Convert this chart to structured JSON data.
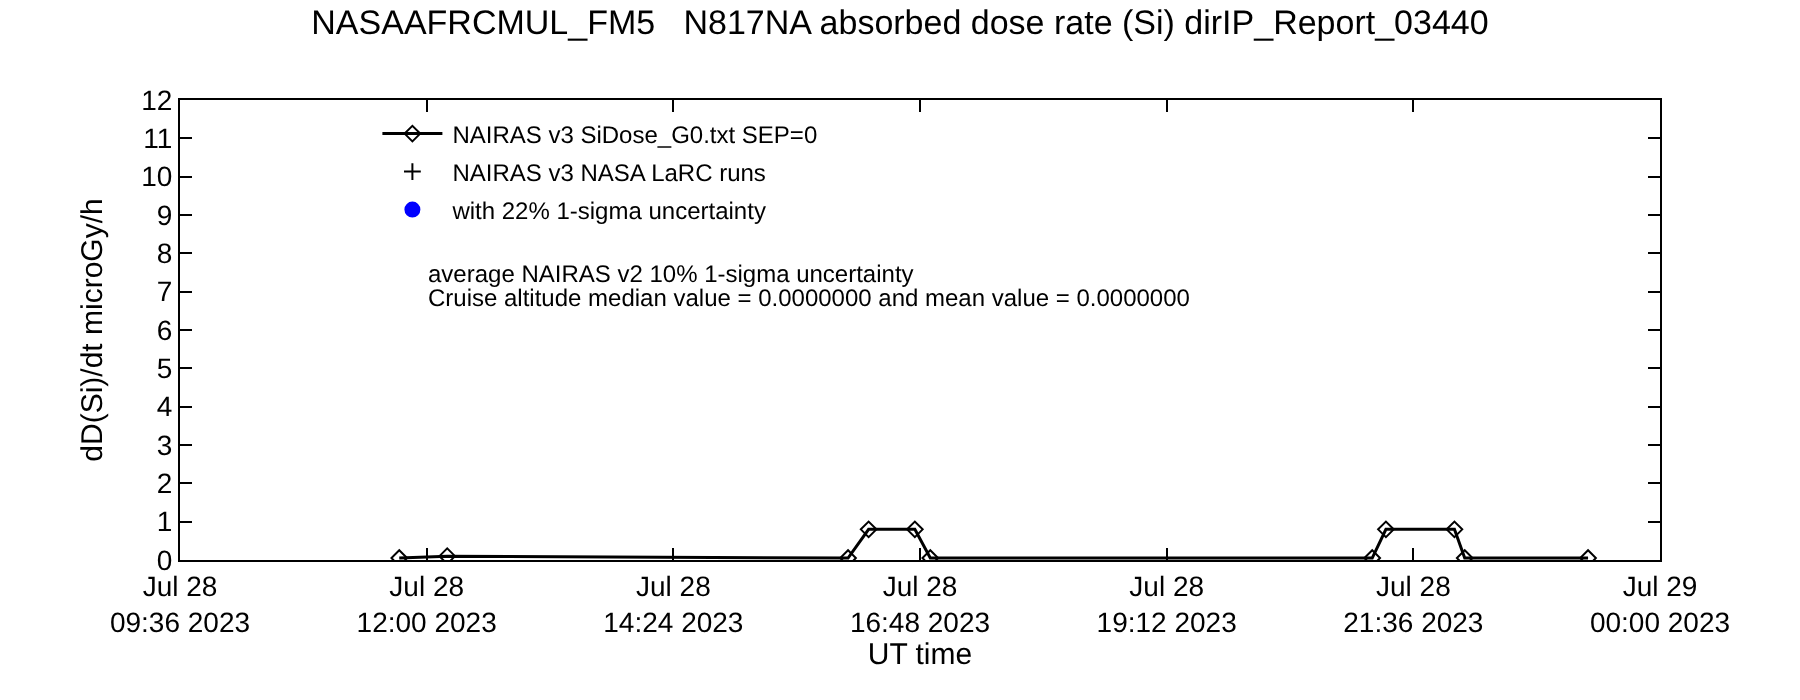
{
  "chart_data": {
    "type": "line",
    "title": "NASAAFRCMUL_FM5   N817NA absorbed dose rate (Si) dirIP_Report_03440",
    "xlabel": "UT time",
    "ylabel": "dD(Si)/dt microGy/h",
    "series": [
      {
        "name": "NAIRAS v3 SiDose_G0.txt SEP=0",
        "color": "#000000",
        "marker": "diamond",
        "x": [
          "2023-07-28T11:44",
          "2023-07-28T12:12",
          "2023-07-28T16:06",
          "2023-07-28T16:18",
          "2023-07-28T16:45",
          "2023-07-28T16:54",
          "2023-07-28T21:12",
          "2023-07-28T21:20",
          "2023-07-28T22:00",
          "2023-07-28T22:06",
          "2023-07-28T23:18"
        ],
        "values": [
          0.05,
          0.1,
          0.05,
          0.8,
          0.8,
          0.05,
          0.05,
          0.8,
          0.8,
          0.05,
          0.05
        ]
      },
      {
        "name": "NAIRAS v3 NASA LaRC runs",
        "color": "#000000",
        "marker": "cross",
        "type": "scatter"
      },
      {
        "name": "with 22% 1-sigma uncertainty",
        "color": "#0000ff",
        "marker": "circle",
        "type": "scatter"
      }
    ],
    "annotations": [
      "average NAIRAS v2 10% 1-sigma uncertainty",
      "Cruise altitude median value = 0.0000000 and mean value = 0.0000000"
    ],
    "xlim": [
      "2023-07-28T09:36",
      "2023-07-29T00:00"
    ],
    "xticks": [
      {
        "value": "2023-07-28T09:36",
        "label": "Jul 28\n09:36 2023"
      },
      {
        "value": "2023-07-28T12:00",
        "label": "Jul 28\n12:00 2023"
      },
      {
        "value": "2023-07-28T14:24",
        "label": "Jul 28\n14:24 2023"
      },
      {
        "value": "2023-07-28T16:48",
        "label": "Jul 28\n16:48 2023"
      },
      {
        "value": "2023-07-28T19:12",
        "label": "Jul 28\n19:12 2023"
      },
      {
        "value": "2023-07-28T21:36",
        "label": "Jul 28\n21:36 2023"
      },
      {
        "value": "2023-07-29T00:00",
        "label": "Jul 29\n00:00 2023"
      }
    ],
    "ylim": [
      0,
      12
    ],
    "yticks": [
      0,
      1,
      2,
      3,
      4,
      5,
      6,
      7,
      8,
      9,
      10,
      11,
      12
    ],
    "legend": "top left",
    "line_style": "solid"
  }
}
